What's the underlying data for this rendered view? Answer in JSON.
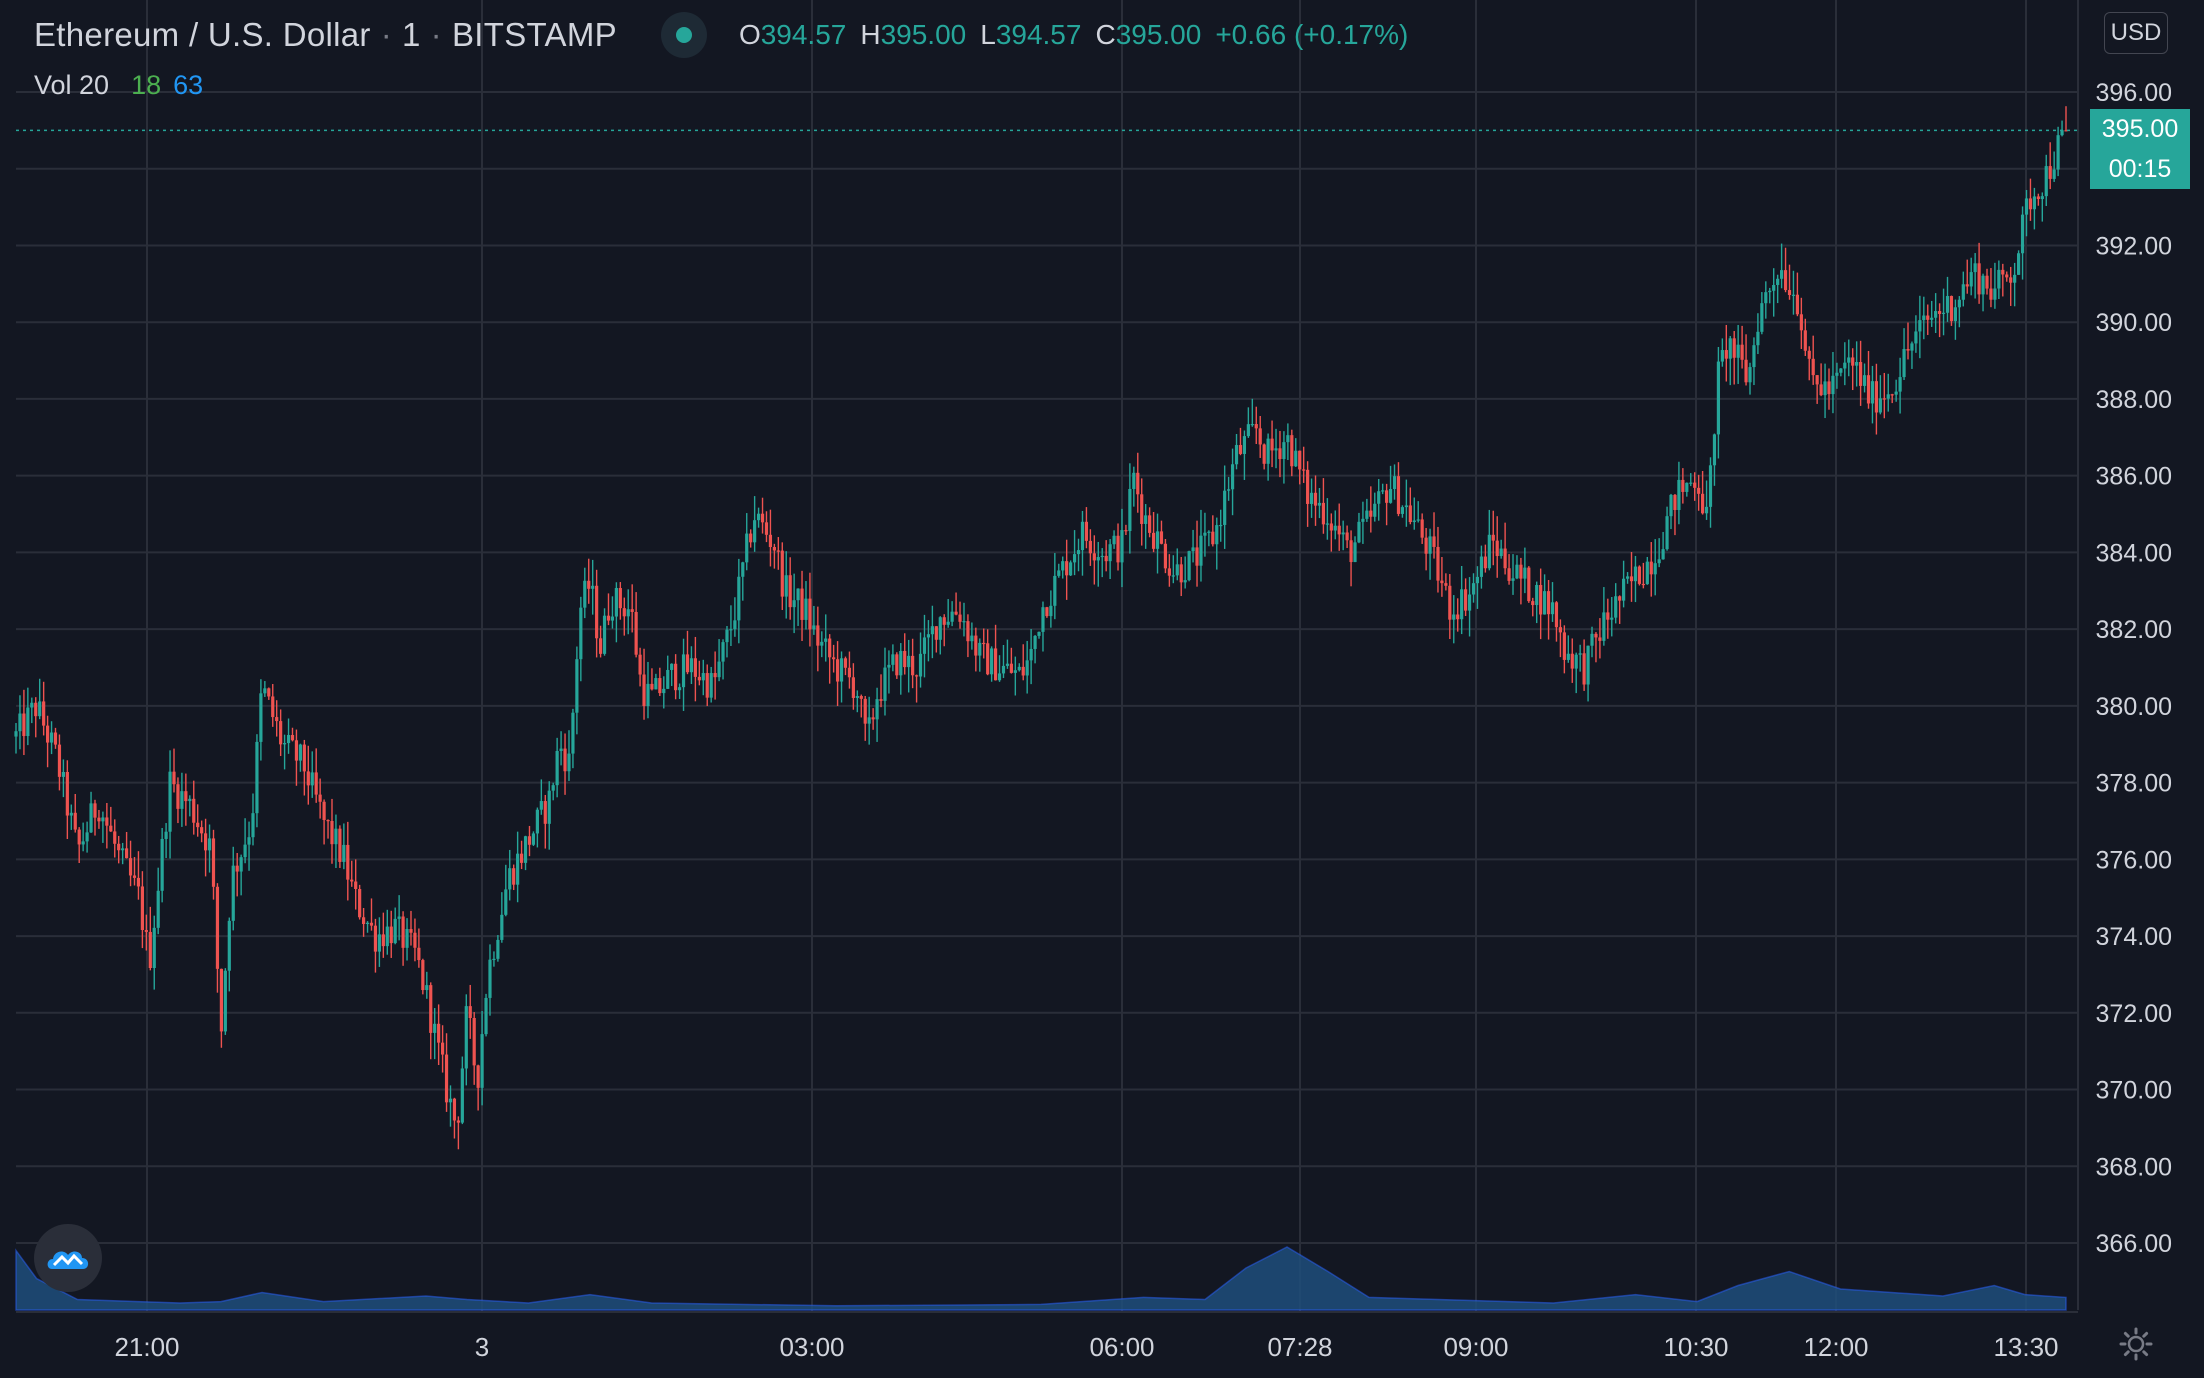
{
  "header": {
    "symbol": "Ethereum / U.S. Dollar",
    "interval": "1",
    "exchange": "BITSTAMP",
    "status_icon": "live-dot-icon",
    "ohlc": {
      "open_label": "O",
      "open": "394.57",
      "high_label": "H",
      "high": "395.00",
      "low_label": "L",
      "low": "394.57",
      "close_label": "C",
      "close": "395.00",
      "change": "+0.66 (+0.17%)"
    }
  },
  "volume_legend": {
    "label": "Vol 20",
    "value_a": "18",
    "value_b": "63"
  },
  "currency_button": "USD",
  "last_price_tag": "395.00",
  "countdown_tag": "00:15",
  "colors": {
    "background": "#131722",
    "grid": "#2a2e39",
    "up": "#26a69a",
    "down": "#ef5350",
    "volume": "#1e4d7b",
    "text": "#d1d4dc"
  },
  "chart_data": {
    "type": "candlestick",
    "y_axis_ticks": [
      "366.00",
      "368.00",
      "370.00",
      "372.00",
      "374.00",
      "376.00",
      "378.00",
      "380.00",
      "382.00",
      "384.00",
      "386.00",
      "388.00",
      "390.00",
      "392.00",
      "394.00",
      "396.00"
    ],
    "x_axis_ticks": [
      "21:00",
      "3",
      "03:00",
      "06:00",
      "07:28",
      "09:00",
      "10:30",
      "12:00",
      "13:30"
    ],
    "ylim": [
      364.5,
      398.5
    ],
    "last_price": 395.0,
    "price_path": [
      {
        "t": 0,
        "p": 379.2
      },
      {
        "t": 0.01,
        "p": 380.0
      },
      {
        "t": 0.02,
        "p": 378.6
      },
      {
        "t": 0.03,
        "p": 376.2
      },
      {
        "t": 0.04,
        "p": 377.5
      },
      {
        "t": 0.05,
        "p": 376.1
      },
      {
        "t": 0.06,
        "p": 375.0
      },
      {
        "t": 0.065,
        "p": 373.3
      },
      {
        "t": 0.075,
        "p": 378.0
      },
      {
        "t": 0.085,
        "p": 377.4
      },
      {
        "t": 0.095,
        "p": 376.3
      },
      {
        "t": 0.1,
        "p": 371.5
      },
      {
        "t": 0.105,
        "p": 375.5
      },
      {
        "t": 0.115,
        "p": 377.0
      },
      {
        "t": 0.12,
        "p": 380.5
      },
      {
        "t": 0.13,
        "p": 379.0
      },
      {
        "t": 0.14,
        "p": 378.5
      },
      {
        "t": 0.15,
        "p": 377.0
      },
      {
        "t": 0.16,
        "p": 376.0
      },
      {
        "t": 0.165,
        "p": 375.0
      },
      {
        "t": 0.175,
        "p": 374.0
      },
      {
        "t": 0.185,
        "p": 374.2
      },
      {
        "t": 0.195,
        "p": 373.5
      },
      {
        "t": 0.2,
        "p": 372.5
      },
      {
        "t": 0.21,
        "p": 370.0
      },
      {
        "t": 0.215,
        "p": 369.0
      },
      {
        "t": 0.22,
        "p": 372.0
      },
      {
        "t": 0.225,
        "p": 370.2
      },
      {
        "t": 0.23,
        "p": 373.0
      },
      {
        "t": 0.24,
        "p": 375.5
      },
      {
        "t": 0.25,
        "p": 376.5
      },
      {
        "t": 0.26,
        "p": 377.5
      },
      {
        "t": 0.265,
        "p": 379.0
      },
      {
        "t": 0.27,
        "p": 378.5
      },
      {
        "t": 0.275,
        "p": 382.5
      },
      {
        "t": 0.28,
        "p": 383.2
      },
      {
        "t": 0.285,
        "p": 381.5
      },
      {
        "t": 0.29,
        "p": 382.8
      },
      {
        "t": 0.3,
        "p": 382.5
      },
      {
        "t": 0.305,
        "p": 380.5
      },
      {
        "t": 0.31,
        "p": 380.2
      },
      {
        "t": 0.32,
        "p": 380.8
      },
      {
        "t": 0.33,
        "p": 381.0
      },
      {
        "t": 0.34,
        "p": 380.5
      },
      {
        "t": 0.35,
        "p": 382.3
      },
      {
        "t": 0.36,
        "p": 385.0
      },
      {
        "t": 0.37,
        "p": 384.2
      },
      {
        "t": 0.375,
        "p": 383.0
      },
      {
        "t": 0.385,
        "p": 382.5
      },
      {
        "t": 0.39,
        "p": 381.8
      },
      {
        "t": 0.4,
        "p": 381.0
      },
      {
        "t": 0.41,
        "p": 380.5
      },
      {
        "t": 0.415,
        "p": 379.0
      },
      {
        "t": 0.42,
        "p": 380.3
      },
      {
        "t": 0.43,
        "p": 381.2
      },
      {
        "t": 0.44,
        "p": 381.0
      },
      {
        "t": 0.45,
        "p": 382.3
      },
      {
        "t": 0.46,
        "p": 382.5
      },
      {
        "t": 0.47,
        "p": 381.3
      },
      {
        "t": 0.48,
        "p": 381.0
      },
      {
        "t": 0.49,
        "p": 380.8
      },
      {
        "t": 0.495,
        "p": 381.3
      },
      {
        "t": 0.5,
        "p": 382.5
      },
      {
        "t": 0.51,
        "p": 383.5
      },
      {
        "t": 0.52,
        "p": 384.5
      },
      {
        "t": 0.53,
        "p": 384.0
      },
      {
        "t": 0.54,
        "p": 384.2
      },
      {
        "t": 0.545,
        "p": 386.0
      },
      {
        "t": 0.55,
        "p": 385.0
      },
      {
        "t": 0.555,
        "p": 384.5
      },
      {
        "t": 0.565,
        "p": 383.5
      },
      {
        "t": 0.575,
        "p": 383.8
      },
      {
        "t": 0.585,
        "p": 384.5
      },
      {
        "t": 0.595,
        "p": 386.5
      },
      {
        "t": 0.605,
        "p": 387.2
      },
      {
        "t": 0.61,
        "p": 386.5
      },
      {
        "t": 0.62,
        "p": 387.0
      },
      {
        "t": 0.63,
        "p": 385.5
      },
      {
        "t": 0.64,
        "p": 385.0
      },
      {
        "t": 0.65,
        "p": 384.0
      },
      {
        "t": 0.66,
        "p": 384.8
      },
      {
        "t": 0.67,
        "p": 385.8
      },
      {
        "t": 0.68,
        "p": 385.0
      },
      {
        "t": 0.69,
        "p": 384.0
      },
      {
        "t": 0.7,
        "p": 382.5
      },
      {
        "t": 0.71,
        "p": 383.0
      },
      {
        "t": 0.72,
        "p": 384.3
      },
      {
        "t": 0.73,
        "p": 383.5
      },
      {
        "t": 0.74,
        "p": 383.0
      },
      {
        "t": 0.75,
        "p": 382.5
      },
      {
        "t": 0.755,
        "p": 381.5
      },
      {
        "t": 0.765,
        "p": 381.0
      },
      {
        "t": 0.775,
        "p": 382.2
      },
      {
        "t": 0.785,
        "p": 383.0
      },
      {
        "t": 0.8,
        "p": 384.0
      },
      {
        "t": 0.81,
        "p": 385.5
      },
      {
        "t": 0.82,
        "p": 386.0
      },
      {
        "t": 0.825,
        "p": 384.8
      },
      {
        "t": 0.83,
        "p": 388.5
      },
      {
        "t": 0.835,
        "p": 389.5
      },
      {
        "t": 0.845,
        "p": 388.5
      },
      {
        "t": 0.85,
        "p": 390.2
      },
      {
        "t": 0.86,
        "p": 391.5
      },
      {
        "t": 0.87,
        "p": 390.5
      },
      {
        "t": 0.875,
        "p": 388.5
      },
      {
        "t": 0.885,
        "p": 388.2
      },
      {
        "t": 0.895,
        "p": 389.0
      },
      {
        "t": 0.905,
        "p": 388.0
      },
      {
        "t": 0.915,
        "p": 388.3
      },
      {
        "t": 0.925,
        "p": 389.5
      },
      {
        "t": 0.935,
        "p": 390.2
      },
      {
        "t": 0.945,
        "p": 390.5
      },
      {
        "t": 0.955,
        "p": 391.3
      },
      {
        "t": 0.965,
        "p": 390.8
      },
      {
        "t": 0.975,
        "p": 391.5
      },
      {
        "t": 0.982,
        "p": 393.2
      },
      {
        "t": 0.99,
        "p": 393.8
      },
      {
        "t": 1.0,
        "p": 395.0
      }
    ],
    "volume_profile": [
      {
        "t": 0,
        "v": 0.85
      },
      {
        "t": 0.01,
        "v": 0.45
      },
      {
        "t": 0.03,
        "v": 0.15
      },
      {
        "t": 0.08,
        "v": 0.1
      },
      {
        "t": 0.1,
        "v": 0.12
      },
      {
        "t": 0.12,
        "v": 0.25
      },
      {
        "t": 0.15,
        "v": 0.12
      },
      {
        "t": 0.2,
        "v": 0.2
      },
      {
        "t": 0.22,
        "v": 0.15
      },
      {
        "t": 0.25,
        "v": 0.1
      },
      {
        "t": 0.28,
        "v": 0.22
      },
      {
        "t": 0.31,
        "v": 0.1
      },
      {
        "t": 0.4,
        "v": 0.06
      },
      {
        "t": 0.5,
        "v": 0.08
      },
      {
        "t": 0.55,
        "v": 0.18
      },
      {
        "t": 0.58,
        "v": 0.15
      },
      {
        "t": 0.6,
        "v": 0.6
      },
      {
        "t": 0.62,
        "v": 0.9
      },
      {
        "t": 0.64,
        "v": 0.55
      },
      {
        "t": 0.66,
        "v": 0.18
      },
      {
        "t": 0.75,
        "v": 0.1
      },
      {
        "t": 0.79,
        "v": 0.22
      },
      {
        "t": 0.82,
        "v": 0.12
      },
      {
        "t": 0.84,
        "v": 0.35
      },
      {
        "t": 0.865,
        "v": 0.55
      },
      {
        "t": 0.89,
        "v": 0.3
      },
      {
        "t": 0.94,
        "v": 0.2
      },
      {
        "t": 0.965,
        "v": 0.35
      },
      {
        "t": 0.98,
        "v": 0.22
      },
      {
        "t": 1.0,
        "v": 0.18
      }
    ]
  }
}
